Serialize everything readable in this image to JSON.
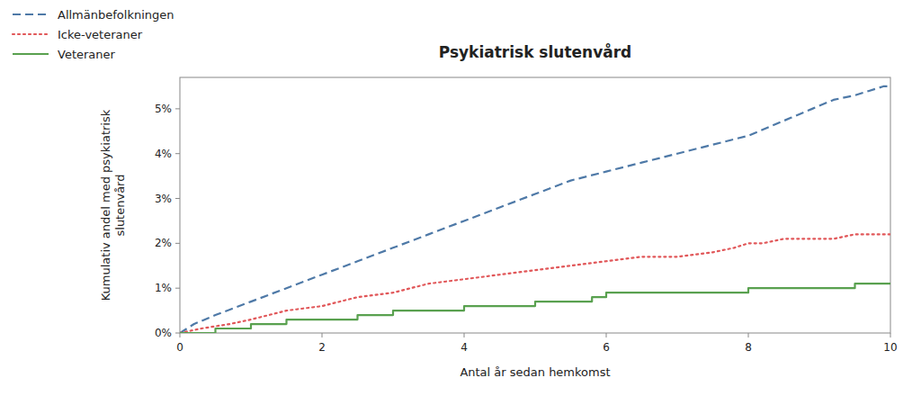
{
  "chart_data": {
    "type": "line",
    "title": "Psykiatrisk slutenvård",
    "x_label": "Antal år sedan hemkomst",
    "y_label": "Kumulativ andel med psykiatrisk\nslutenvård",
    "xlim": [
      0,
      10
    ],
    "ylim": [
      0,
      0.057
    ],
    "xticks": [
      0,
      2,
      4,
      6,
      8,
      10
    ],
    "yticks": [
      {
        "value": 0.0,
        "label": "0%"
      },
      {
        "value": 0.01,
        "label": "1%"
      },
      {
        "value": 0.02,
        "label": "2%"
      },
      {
        "value": 0.03,
        "label": "3%"
      },
      {
        "value": 0.04,
        "label": "4%"
      },
      {
        "value": 0.05,
        "label": "5%"
      }
    ],
    "grid": false,
    "legend": "top-left",
    "series": [
      {
        "name": "Allmänbefolkningen",
        "type": "line",
        "line_style": "dashed",
        "x": [
          0,
          0.2,
          0.5,
          1.0,
          1.5,
          2.0,
          2.5,
          3.0,
          3.5,
          4.0,
          4.5,
          5.0,
          5.5,
          6.0,
          6.5,
          7.0,
          7.5,
          8.0,
          8.3,
          8.6,
          8.9,
          9.2,
          9.5,
          9.7,
          9.9,
          10.0
        ],
        "values": [
          0.0,
          0.002,
          0.004,
          0.007,
          0.01,
          0.013,
          0.016,
          0.019,
          0.022,
          0.025,
          0.028,
          0.031,
          0.034,
          0.036,
          0.038,
          0.04,
          0.042,
          0.044,
          0.046,
          0.048,
          0.05,
          0.052,
          0.053,
          0.054,
          0.055,
          0.055
        ]
      },
      {
        "name": "Icke-veteraner",
        "type": "line",
        "line_style": "dotted",
        "x": [
          0,
          0.3,
          0.7,
          1.0,
          1.5,
          2.0,
          2.5,
          3.0,
          3.5,
          4.0,
          4.5,
          5.0,
          5.5,
          6.0,
          6.5,
          7.0,
          7.5,
          7.8,
          8.0,
          8.2,
          8.5,
          8.8,
          9.0,
          9.2,
          9.5,
          9.8,
          10.0
        ],
        "values": [
          0.0,
          0.001,
          0.002,
          0.003,
          0.005,
          0.006,
          0.008,
          0.009,
          0.011,
          0.012,
          0.013,
          0.014,
          0.015,
          0.016,
          0.017,
          0.017,
          0.018,
          0.019,
          0.02,
          0.02,
          0.021,
          0.021,
          0.021,
          0.021,
          0.022,
          0.022,
          0.022
        ]
      },
      {
        "name": "Veteraner",
        "type": "step",
        "line_style": "solid",
        "x": [
          0,
          0.5,
          1.0,
          1.5,
          2.0,
          2.5,
          3.0,
          3.5,
          4.0,
          4.5,
          5.0,
          5.5,
          5.8,
          6.0,
          6.2,
          6.5,
          7.0,
          7.5,
          7.8,
          8.0,
          8.5,
          9.0,
          9.5,
          10.0
        ],
        "values": [
          0.0,
          0.001,
          0.002,
          0.003,
          0.003,
          0.004,
          0.005,
          0.005,
          0.006,
          0.006,
          0.007,
          0.007,
          0.008,
          0.009,
          0.009,
          0.009,
          0.009,
          0.009,
          0.009,
          0.01,
          0.01,
          0.01,
          0.011,
          0.011
        ]
      }
    ]
  }
}
